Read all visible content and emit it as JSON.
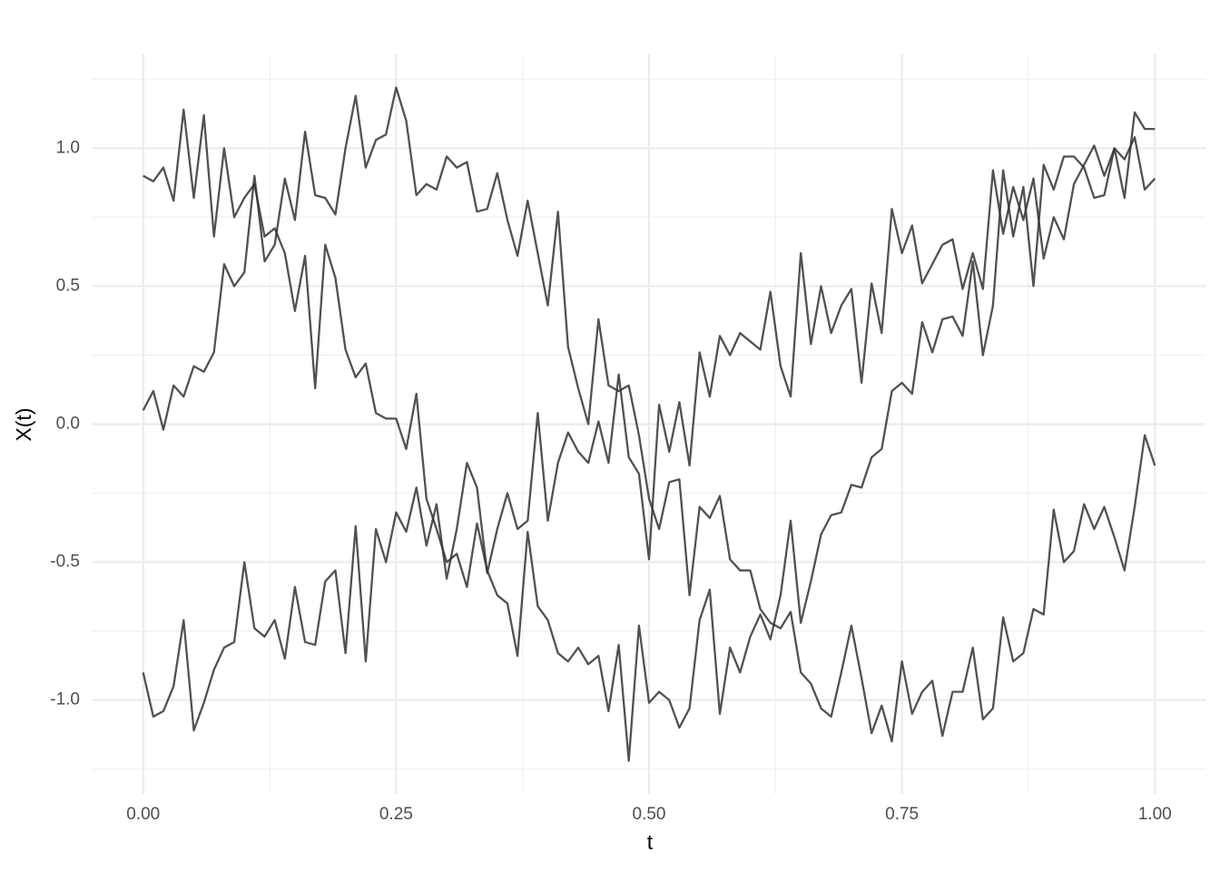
{
  "chart_data": {
    "type": "line",
    "x_label": "t",
    "y_label": "X(t)",
    "x": [
      0,
      0.01,
      0.02,
      0.03,
      0.04,
      0.05,
      0.06,
      0.07,
      0.08,
      0.09,
      0.1,
      0.11,
      0.12,
      0.13,
      0.14,
      0.15,
      0.16,
      0.17,
      0.18,
      0.19,
      0.2,
      0.21,
      0.22,
      0.23,
      0.24,
      0.25,
      0.26,
      0.27,
      0.28,
      0.29,
      0.3,
      0.31,
      0.32,
      0.33,
      0.34,
      0.35,
      0.36,
      0.37,
      0.38,
      0.39,
      0.4,
      0.41,
      0.42,
      0.43,
      0.44,
      0.45,
      0.46,
      0.47,
      0.48,
      0.49,
      0.5,
      0.51,
      0.52,
      0.53,
      0.54,
      0.55,
      0.56,
      0.57,
      0.58,
      0.59,
      0.6,
      0.61,
      0.62,
      0.63,
      0.64,
      0.65,
      0.66,
      0.67,
      0.68,
      0.69,
      0.7,
      0.71,
      0.72,
      0.73,
      0.74,
      0.75,
      0.76,
      0.77,
      0.78,
      0.79,
      0.8,
      0.81,
      0.82,
      0.83,
      0.84,
      0.85,
      0.86,
      0.87,
      0.88,
      0.89,
      0.9,
      0.91,
      0.92,
      0.93,
      0.94,
      0.95,
      0.96,
      0.97,
      0.98,
      0.99,
      1
    ],
    "series": [
      {
        "color": "#333333",
        "values": [
          0.9,
          0.88,
          0.93,
          0.81,
          1.14,
          0.82,
          1.12,
          0.68,
          1.0,
          0.75,
          0.82,
          0.87,
          0.68,
          0.71,
          0.62,
          0.41,
          0.61,
          0.13,
          0.65,
          0.53,
          0.27,
          0.17,
          0.22,
          0.04,
          0.02,
          0.02,
          -0.09,
          0.11,
          -0.27,
          -0.38,
          -0.5,
          -0.47,
          -0.59,
          -0.36,
          -0.53,
          -0.62,
          -0.65,
          -0.84,
          -0.39,
          -0.66,
          -0.71,
          -0.83,
          -0.86,
          -0.81,
          -0.87,
          -0.84,
          -1.04,
          -0.8,
          -1.22,
          -0.73,
          -1.01,
          -0.97,
          -1.0,
          -1.1,
          -1.03,
          -0.71,
          -0.6,
          -1.05,
          -0.81,
          -0.9,
          -0.77,
          -0.69,
          -0.78,
          -0.62,
          -0.35,
          -0.72,
          -0.57,
          -0.4,
          -0.33,
          -0.32,
          -0.22,
          -0.23,
          -0.12,
          -0.09,
          0.12,
          0.15,
          0.11,
          0.37,
          0.26,
          0.38,
          0.39,
          0.32,
          0.59,
          0.25,
          0.43,
          0.92,
          0.68,
          0.86,
          0.5,
          0.94,
          0.85,
          0.97,
          0.97,
          0.93,
          0.82,
          0.83,
          1.0,
          0.82,
          1.13,
          1.07,
          1.07
        ]
      },
      {
        "color": "#333333",
        "values": [
          0.05,
          0.12,
          -0.02,
          0.14,
          0.1,
          0.21,
          0.19,
          0.26,
          0.58,
          0.5,
          0.55,
          0.9,
          0.59,
          0.65,
          0.89,
          0.74,
          1.06,
          0.83,
          0.82,
          0.76,
          1.0,
          1.19,
          0.93,
          1.03,
          1.05,
          1.22,
          1.1,
          0.83,
          0.87,
          0.85,
          0.97,
          0.93,
          0.95,
          0.77,
          0.78,
          0.91,
          0.74,
          0.61,
          0.81,
          0.62,
          0.43,
          0.77,
          0.28,
          0.13,
          0.0,
          0.38,
          0.14,
          0.12,
          0.14,
          -0.04,
          -0.27,
          -0.38,
          -0.21,
          -0.2,
          -0.62,
          -0.3,
          -0.34,
          -0.26,
          -0.49,
          -0.53,
          -0.53,
          -0.67,
          -0.72,
          -0.74,
          -0.68,
          -0.9,
          -0.94,
          -1.03,
          -1.06,
          -0.9,
          -0.73,
          -0.92,
          -1.12,
          -1.02,
          -1.15,
          -0.86,
          -1.05,
          -0.97,
          -0.93,
          -1.13,
          -0.97,
          -0.97,
          -0.81,
          -1.07,
          -1.03,
          -0.7,
          -0.86,
          -0.83,
          -0.67,
          -0.69,
          -0.31,
          -0.5,
          -0.46,
          -0.29,
          -0.38,
          -0.3,
          -0.41,
          -0.53,
          -0.3,
          -0.04,
          -0.15
        ]
      },
      {
        "color": "#333333",
        "values": [
          -0.9,
          -1.06,
          -1.04,
          -0.95,
          -0.71,
          -1.11,
          -1.01,
          -0.89,
          -0.81,
          -0.79,
          -0.5,
          -0.74,
          -0.77,
          -0.71,
          -0.85,
          -0.59,
          -0.79,
          -0.8,
          -0.57,
          -0.53,
          -0.83,
          -0.37,
          -0.86,
          -0.38,
          -0.5,
          -0.32,
          -0.39,
          -0.23,
          -0.44,
          -0.29,
          -0.56,
          -0.38,
          -0.14,
          -0.23,
          -0.54,
          -0.38,
          -0.25,
          -0.38,
          -0.35,
          0.04,
          -0.35,
          -0.14,
          -0.03,
          -0.1,
          -0.14,
          0.01,
          -0.14,
          0.18,
          -0.12,
          -0.18,
          -0.49,
          0.07,
          -0.1,
          0.08,
          -0.15,
          0.26,
          0.1,
          0.32,
          0.25,
          0.33,
          0.3,
          0.27,
          0.48,
          0.21,
          0.1,
          0.62,
          0.29,
          0.5,
          0.33,
          0.43,
          0.49,
          0.15,
          0.51,
          0.33,
          0.78,
          0.62,
          0.72,
          0.51,
          0.58,
          0.65,
          0.67,
          0.49,
          0.62,
          0.49,
          0.92,
          0.69,
          0.86,
          0.74,
          0.89,
          0.6,
          0.75,
          0.67,
          0.87,
          0.94,
          1.01,
          0.9,
          1.0,
          0.96,
          1.04,
          0.85,
          0.89
        ]
      }
    ],
    "xlim": [
      -0.05,
      1.05
    ],
    "ylim": [
      -1.34,
      1.34
    ],
    "xticks": [
      {
        "value": 0,
        "label": "0.00"
      },
      0.25,
      {
        "value": 0.5,
        "label": "0.50"
      },
      0.75,
      {
        "value": 1,
        "label": "1.00"
      }
    ],
    "yticks": [
      {
        "value": -1,
        "label": "-1.0"
      },
      -0.5,
      {
        "value": 0,
        "label": "0.0"
      },
      0.5,
      {
        "value": 1,
        "label": "1.0"
      }
    ],
    "grid": true
  }
}
